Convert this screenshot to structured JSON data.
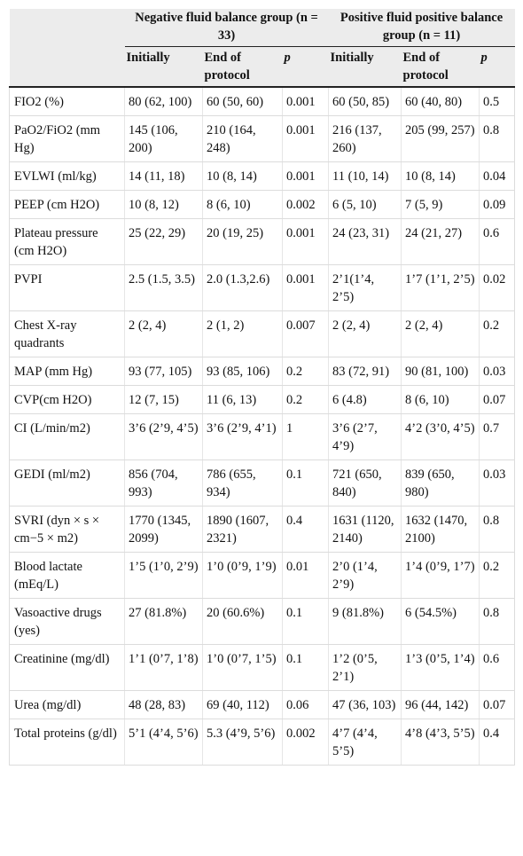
{
  "header": {
    "group_negative": "Negative fluid balance group (n = 33)",
    "group_positive": "Positive fluid positive balance group (n = 11)",
    "col_initially": "Initially",
    "col_end": "End of protocol",
    "col_p": "p"
  },
  "rows": [
    {
      "label": "FIO2 (%)",
      "neg_init": "80 (62, 100)",
      "neg_end": "60 (50, 60)",
      "neg_p": "0.001",
      "pos_init": "60 (50, 85)",
      "pos_end": "60 (40, 80)",
      "pos_p": "0.5"
    },
    {
      "label": "PaO2/FiO2 (mm Hg)",
      "neg_init": "145 (106, 200)",
      "neg_end": "210 (164, 248)",
      "neg_p": "0.001",
      "pos_init": "216 (137, 260)",
      "pos_end": "205 (99, 257)",
      "pos_p": "0.8"
    },
    {
      "label": "EVLWI (ml/kg)",
      "neg_init": "14 (11, 18)",
      "neg_end": "10 (8, 14)",
      "neg_p": "0.001",
      "pos_init": "11 (10, 14)",
      "pos_end": "10 (8, 14)",
      "pos_p": "0.04"
    },
    {
      "label": "PEEP (cm H2O)",
      "neg_init": "10 (8, 12)",
      "neg_end": "8 (6, 10)",
      "neg_p": "0.002",
      "pos_init": "6 (5, 10)",
      "pos_end": "7 (5, 9)",
      "pos_p": "0.09"
    },
    {
      "label": "Plateau pressure (cm H2O)",
      "neg_init": "25 (22, 29)",
      "neg_end": "20 (19, 25)",
      "neg_p": "0.001",
      "pos_init": "24 (23, 31)",
      "pos_end": "24 (21, 27)",
      "pos_p": "0.6"
    },
    {
      "label": "PVPI",
      "neg_init": "2.5 (1.5, 3.5)",
      "neg_end": "2.0 (1.3,2.6)",
      "neg_p": "0.001",
      "pos_init": "2’1(1’4, 2’5)",
      "pos_end": "1’7 (1’1, 2’5)",
      "pos_p": "0.02"
    },
    {
      "label": "Chest X-ray quadrants",
      "neg_init": "2 (2, 4)",
      "neg_end": "2 (1, 2)",
      "neg_p": "0.007",
      "pos_init": "2 (2, 4)",
      "pos_end": "2 (2, 4)",
      "pos_p": "0.2"
    },
    {
      "label": "MAP (mm Hg)",
      "neg_init": "93 (77, 105)",
      "neg_end": "93 (85, 106)",
      "neg_p": "0.2",
      "pos_init": "83 (72, 91)",
      "pos_end": "90 (81, 100)",
      "pos_p": "0.03"
    },
    {
      "label": "CVP(cm H2O)",
      "neg_init": "12 (7, 15)",
      "neg_end": "11 (6, 13)",
      "neg_p": "0.2",
      "pos_init": "6 (4.8)",
      "pos_end": "8 (6, 10)",
      "pos_p": "0.07"
    },
    {
      "label": "CI (L/min/m2)",
      "neg_init": "3’6 (2’9, 4’5)",
      "neg_end": "3’6 (2’9, 4’1)",
      "neg_p": "1",
      "pos_init": "3’6 (2’7, 4’9)",
      "pos_end": "4’2 (3’0, 4’5)",
      "pos_p": "0.7"
    },
    {
      "label": "GEDI (ml/m2)",
      "neg_init": "856 (704, 993)",
      "neg_end": "786 (655, 934)",
      "neg_p": "0.1",
      "pos_init": "721 (650, 840)",
      "pos_end": "839 (650, 980)",
      "pos_p": "0.03"
    },
    {
      "label": "SVRI (dyn × s × cm−5 × m2)",
      "neg_init": "1770 (1345, 2099)",
      "neg_end": "1890 (1607, 2321)",
      "neg_p": "0.4",
      "pos_init": "1631 (1120, 2140)",
      "pos_end": "1632 (1470, 2100)",
      "pos_p": "0.8"
    },
    {
      "label": "Blood lactate (mEq/L)",
      "neg_init": "1’5 (1’0, 2’9)",
      "neg_end": "1’0 (0’9, 1’9)",
      "neg_p": "0.01",
      "pos_init": "2’0 (1’4, 2’9)",
      "pos_end": "1’4 (0’9, 1’7)",
      "pos_p": "0.2"
    },
    {
      "label": "Vasoactive drugs (yes)",
      "neg_init": "27 (81.8%)",
      "neg_end": "20 (60.6%)",
      "neg_p": "0.1",
      "pos_init": "9 (81.8%)",
      "pos_end": "6 (54.5%)",
      "pos_p": "0.8"
    },
    {
      "label": "Creatinine (mg/dl)",
      "neg_init": "1’1 (0’7, 1’8)",
      "neg_end": "1’0 (0’7, 1’5)",
      "neg_p": "0.1",
      "pos_init": "1’2 (0’5, 2’1)",
      "pos_end": "1’3 (0’5, 1’4)",
      "pos_p": "0.6"
    },
    {
      "label": "Urea (mg/dl)",
      "neg_init": "48 (28, 83)",
      "neg_end": "69 (40, 112)",
      "neg_p": "0.06",
      "pos_init": "47 (36, 103)",
      "pos_end": "96 (44, 142)",
      "pos_p": "0.07"
    },
    {
      "label": "Total proteins (g/dl)",
      "neg_init": "5’1 (4’4, 5’6)",
      "neg_end": "5.3 (4’9, 5’6)",
      "neg_p": "0.002",
      "pos_init": "4’7 (4’4, 5’5)",
      "pos_end": "4’8 (4’3, 5’5)",
      "pos_p": "0.4"
    }
  ]
}
